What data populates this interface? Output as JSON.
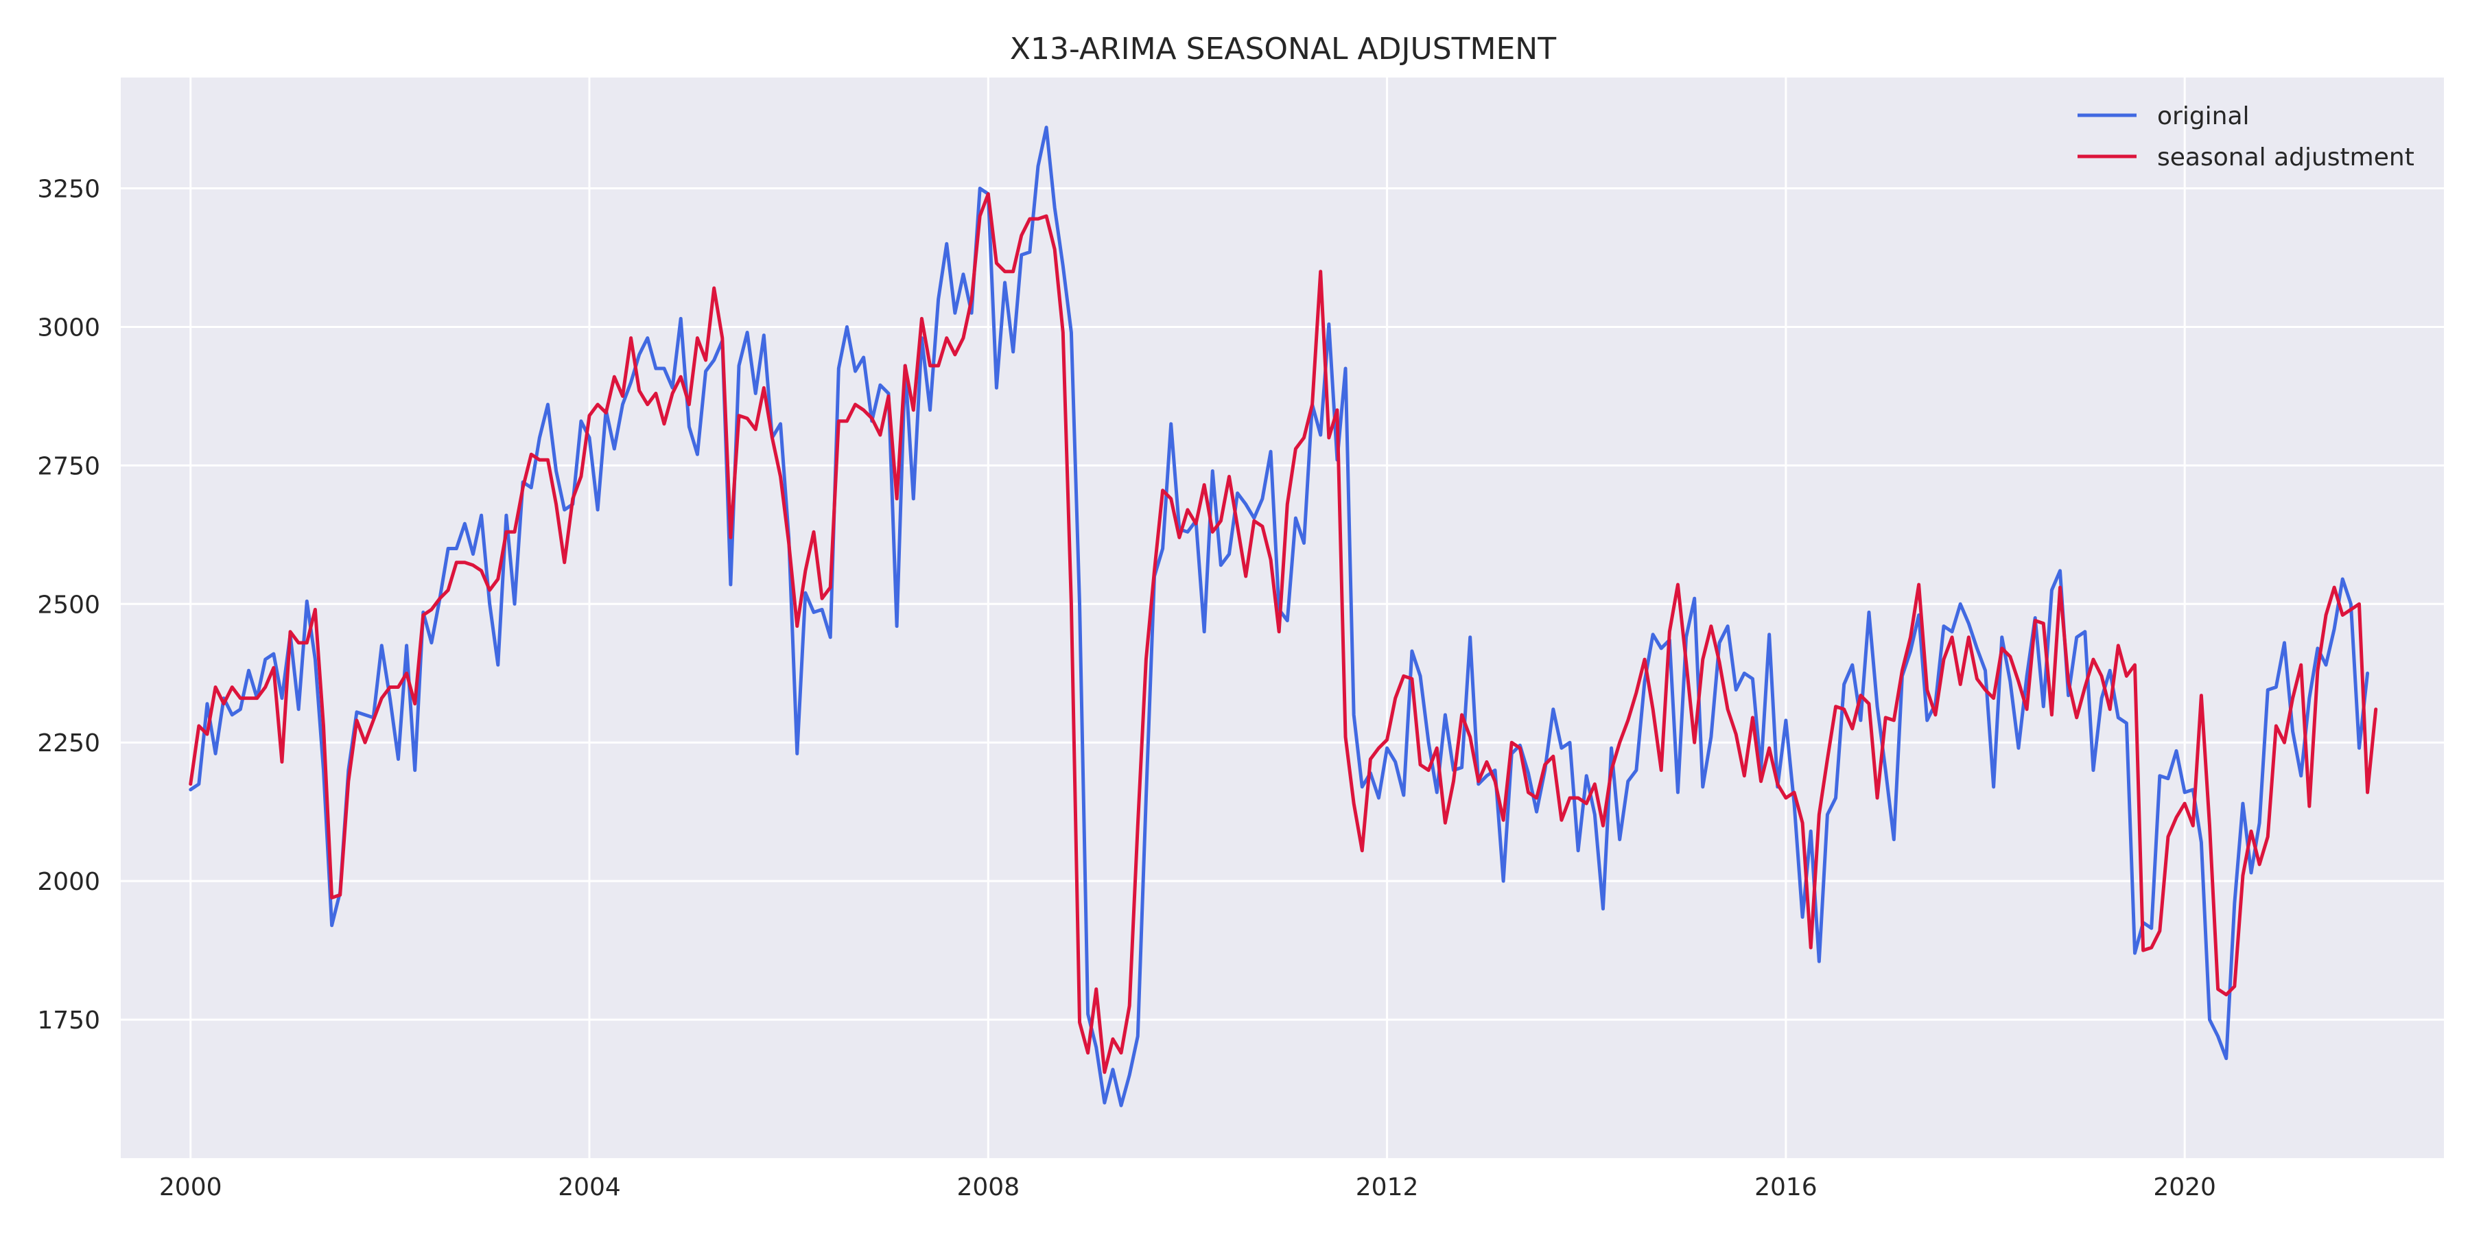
{
  "chart_data": {
    "type": "line",
    "title": "X13-ARIMA SEASONAL ADJUSTMENT",
    "xlabel": "",
    "ylabel": "",
    "x_start": 2000.0,
    "x_step_months": 1,
    "xlim": [
      1999.3,
      2022.6
    ],
    "ylim": [
      1500,
      3450
    ],
    "xticks": [
      2000,
      2004,
      2008,
      2012,
      2016,
      2020
    ],
    "xtick_labels": [
      "2000",
      "2004",
      "2008",
      "2012",
      "2016",
      "2020"
    ],
    "yticks": [
      1750,
      2000,
      2250,
      2500,
      2750,
      3000,
      3250
    ],
    "ytick_labels": [
      "1750",
      "2000",
      "2250",
      "2500",
      "2750",
      "3000",
      "3250"
    ],
    "grid": true,
    "legend_position": "top-right",
    "series": [
      {
        "name": "original",
        "color": "#4169e1",
        "values": [
          2165,
          2175,
          2320,
          2230,
          2330,
          2300,
          2310,
          2380,
          2330,
          2400,
          2410,
          2330,
          2445,
          2310,
          2505,
          2400,
          2200,
          1920,
          1980,
          2200,
          2305,
          2300,
          2295,
          2425,
          2330,
          2220,
          2425,
          2200,
          2485,
          2430,
          2510,
          2600,
          2600,
          2645,
          2590,
          2660,
          2500,
          2390,
          2660,
          2500,
          2720,
          2710,
          2800,
          2860,
          2740,
          2670,
          2680,
          2830,
          2800,
          2670,
          2850,
          2780,
          2860,
          2900,
          2950,
          2980,
          2925,
          2925,
          2890,
          3015,
          2820,
          2770,
          2920,
          2940,
          2975,
          2535,
          2930,
          2990,
          2880,
          2985,
          2800,
          2825,
          2620,
          2230,
          2520,
          2485,
          2490,
          2440,
          2925,
          3000,
          2920,
          2945,
          2830,
          2895,
          2880,
          2460,
          2930,
          2690,
          2980,
          2850,
          3050,
          3150,
          3025,
          3095,
          3025,
          3250,
          3240,
          2890,
          3080,
          2955,
          3130,
          3135,
          3290,
          3360,
          3215,
          3110,
          2990,
          2500,
          1760,
          1700,
          1600,
          1660,
          1595,
          1650,
          1720,
          2150,
          2550,
          2600,
          2825,
          2635,
          2630,
          2650,
          2450,
          2740,
          2570,
          2590,
          2700,
          2680,
          2655,
          2690,
          2775,
          2490,
          2470,
          2655,
          2610,
          2860,
          2805,
          3005,
          2760,
          2925,
          2300,
          2170,
          2195,
          2150,
          2240,
          2215,
          2155,
          2415,
          2370,
          2250,
          2160,
          2300,
          2200,
          2205,
          2440,
          2175,
          2190,
          2200,
          2000,
          2230,
          2245,
          2195,
          2125,
          2200,
          2310,
          2240,
          2250,
          2055,
          2190,
          2120,
          1950,
          2240,
          2075,
          2180,
          2200,
          2360,
          2445,
          2420,
          2435,
          2160,
          2440,
          2510,
          2170,
          2260,
          2430,
          2460,
          2345,
          2375,
          2365,
          2200,
          2445,
          2170,
          2290,
          2140,
          1935,
          2090,
          1855,
          2120,
          2150,
          2355,
          2390,
          2290,
          2485,
          2315,
          2200,
          2075,
          2370,
          2415,
          2480,
          2290,
          2320,
          2460,
          2450,
          2500,
          2465,
          2420,
          2380,
          2170,
          2440,
          2360,
          2240,
          2370,
          2475,
          2315,
          2525,
          2560,
          2335,
          2440,
          2450,
          2200,
          2330,
          2380,
          2295,
          2285,
          1870,
          1925,
          1915,
          2190,
          2185,
          2235,
          2160,
          2165,
          2070,
          1750,
          1720,
          1680,
          1960,
          2140,
          2015,
          2105,
          2345,
          2350,
          2430,
          2270,
          2190,
          2330,
          2420,
          2390,
          2455,
          2545,
          2500,
          2240,
          2375
        ]
      },
      {
        "name": "seasonal adjustment",
        "color": "#dc143c",
        "values": [
          2175,
          2280,
          2265,
          2350,
          2320,
          2350,
          2330,
          2330,
          2330,
          2350,
          2385,
          2215,
          2450,
          2430,
          2430,
          2490,
          2280,
          1970,
          1975,
          2180,
          2290,
          2250,
          2290,
          2330,
          2350,
          2350,
          2375,
          2320,
          2480,
          2490,
          2510,
          2525,
          2575,
          2575,
          2570,
          2560,
          2525,
          2545,
          2630,
          2630,
          2710,
          2770,
          2760,
          2760,
          2680,
          2575,
          2690,
          2730,
          2840,
          2860,
          2845,
          2910,
          2875,
          2980,
          2885,
          2860,
          2880,
          2825,
          2880,
          2910,
          2860,
          2980,
          2940,
          3070,
          2980,
          2620,
          2840,
          2835,
          2815,
          2890,
          2800,
          2730,
          2610,
          2460,
          2560,
          2630,
          2510,
          2530,
          2830,
          2830,
          2860,
          2850,
          2835,
          2805,
          2875,
          2690,
          2930,
          2850,
          3015,
          2930,
          2930,
          2980,
          2950,
          2980,
          3050,
          3200,
          3240,
          3115,
          3100,
          3100,
          3165,
          3195,
          3195,
          3200,
          3140,
          2990,
          2500,
          1745,
          1690,
          1805,
          1655,
          1715,
          1690,
          1775,
          2100,
          2400,
          2560,
          2705,
          2690,
          2620,
          2670,
          2645,
          2715,
          2630,
          2650,
          2730,
          2640,
          2550,
          2650,
          2640,
          2580,
          2450,
          2680,
          2780,
          2800,
          2860,
          3100,
          2800,
          2850,
          2260,
          2140,
          2055,
          2220,
          2240,
          2255,
          2330,
          2370,
          2365,
          2210,
          2200,
          2240,
          2105,
          2180,
          2300,
          2260,
          2180,
          2215,
          2180,
          2110,
          2250,
          2240,
          2160,
          2150,
          2210,
          2225,
          2110,
          2150,
          2150,
          2140,
          2175,
          2100,
          2200,
          2250,
          2290,
          2340,
          2400,
          2310,
          2200,
          2450,
          2535,
          2395,
          2250,
          2400,
          2460,
          2395,
          2310,
          2265,
          2190,
          2295,
          2180,
          2240,
          2175,
          2150,
          2160,
          2105,
          1880,
          2120,
          2220,
          2315,
          2310,
          2275,
          2335,
          2320,
          2150,
          2295,
          2290,
          2380,
          2440,
          2535,
          2345,
          2300,
          2400,
          2440,
          2355,
          2440,
          2365,
          2345,
          2330,
          2420,
          2405,
          2360,
          2310,
          2470,
          2465,
          2300,
          2530,
          2360,
          2295,
          2350,
          2400,
          2370,
          2310,
          2425,
          2370,
          2390,
          1875,
          1880,
          1910,
          2080,
          2115,
          2140,
          2100,
          2335,
          2100,
          1805,
          1795,
          1810,
          2010,
          2090,
          2030,
          2080,
          2280,
          2250,
          2330,
          2390,
          2135,
          2380,
          2480,
          2530,
          2480,
          2490,
          2500,
          2160,
          2310
        ]
      }
    ]
  }
}
